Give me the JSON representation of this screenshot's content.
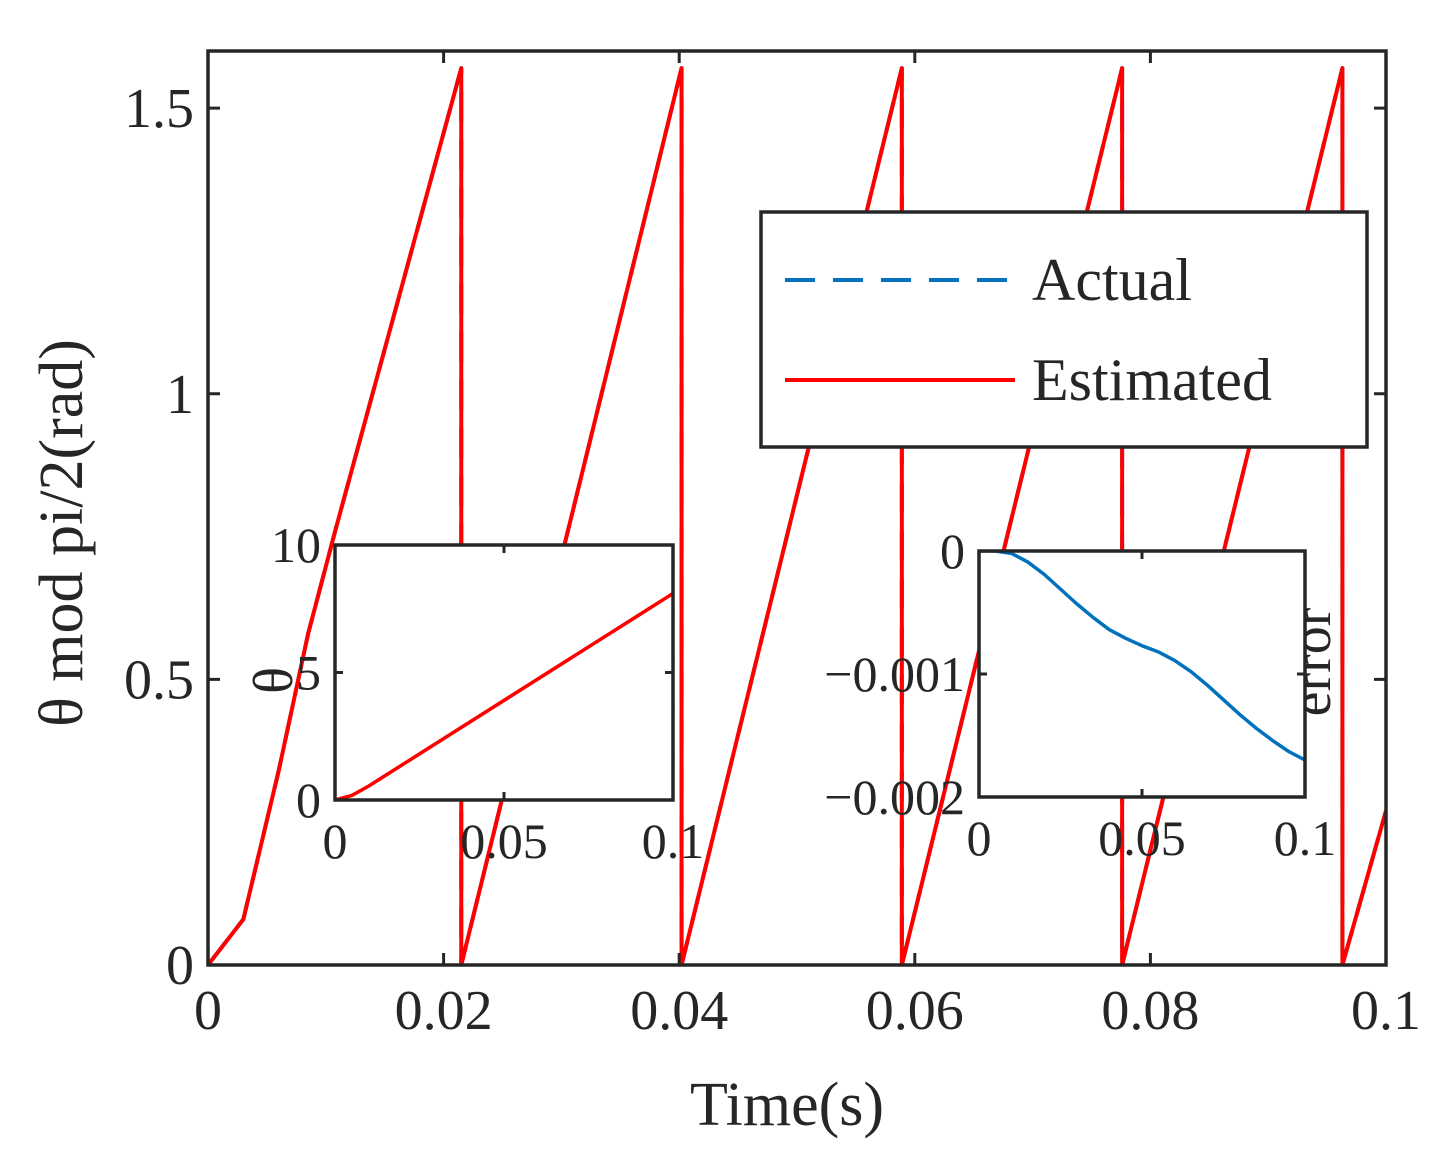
{
  "chart_data": [
    {
      "id": "main",
      "type": "line",
      "title": "",
      "xlabel": "Time(s)",
      "ylabel": "θ mod pi/2(rad)",
      "xlim": [
        0,
        0.1
      ],
      "ylim": [
        0,
        1.6
      ],
      "xticks": [
        0,
        0.02,
        0.04,
        0.06,
        0.08,
        0.1
      ],
      "xtick_labels": [
        "0",
        "0.02",
        "0.04",
        "0.06",
        "0.08",
        "0.1"
      ],
      "yticks": [
        0,
        0.5,
        1,
        1.5
      ],
      "ytick_labels": [
        "0",
        "0.5",
        "1",
        "1.5"
      ],
      "grid": false,
      "legend_position": "top-right",
      "series": [
        {
          "name": "Actual",
          "style": "dashed",
          "color": "#0072BD",
          "x": [
            0,
            0.003,
            0.006,
            0.0085,
            0.0108,
            0.0215,
            0.0215,
            0.0402,
            0.0402,
            0.0589,
            0.0589,
            0.0776,
            0.0776,
            0.0963,
            0.0963,
            0.1
          ],
          "y": [
            0,
            0.08,
            0.34,
            0.58,
            0.76,
            1.57,
            0,
            1.57,
            0,
            1.57,
            0,
            1.57,
            0,
            1.57,
            0,
            0.27
          ]
        },
        {
          "name": "Estimated",
          "style": "solid",
          "color": "#FF0000",
          "x": [
            0,
            0.003,
            0.006,
            0.0085,
            0.0108,
            0.0215,
            0.0215,
            0.0402,
            0.0402,
            0.0589,
            0.0589,
            0.0776,
            0.0776,
            0.0963,
            0.0963,
            0.1
          ],
          "y": [
            0,
            0.08,
            0.34,
            0.58,
            0.76,
            1.57,
            0,
            1.57,
            0,
            1.57,
            0,
            1.57,
            0,
            1.57,
            0,
            0.27
          ]
        }
      ]
    },
    {
      "id": "inset-theta",
      "type": "line",
      "xlabel": "",
      "ylabel": "θ",
      "xlim": [
        0,
        0.1
      ],
      "ylim": [
        0,
        10
      ],
      "xticks": [
        0,
        0.05,
        0.1
      ],
      "xtick_labels": [
        "0",
        "0.05",
        "0.1"
      ],
      "yticks": [
        0,
        5,
        10
      ],
      "ytick_labels": [
        "0",
        "5",
        "10"
      ],
      "series": [
        {
          "name": "θ",
          "color": "#FF0000",
          "x": [
            0,
            0.005,
            0.01,
            0.1
          ],
          "y": [
            0,
            0.18,
            0.55,
            8.1
          ]
        }
      ]
    },
    {
      "id": "inset-error",
      "type": "line",
      "xlabel": "",
      "ylabel": "error",
      "xlim": [
        0,
        0.1
      ],
      "ylim": [
        -0.002,
        0
      ],
      "xticks": [
        0,
        0.05,
        0.1
      ],
      "xtick_labels": [
        "0",
        "0.05",
        "0.1"
      ],
      "yticks": [
        -0.002,
        -0.001,
        0
      ],
      "ytick_labels": [
        "−0.002",
        "−0.001",
        "0"
      ],
      "series": [
        {
          "name": "error",
          "color": "#0072BD",
          "x": [
            0,
            0.005,
            0.01,
            0.015,
            0.02,
            0.025,
            0.03,
            0.035,
            0.04,
            0.045,
            0.05,
            0.055,
            0.06,
            0.065,
            0.07,
            0.075,
            0.08,
            0.085,
            0.09,
            0.095,
            0.1
          ],
          "y": [
            0,
            0,
            -2e-05,
            -9e-05,
            -0.00019,
            -0.00031,
            -0.00043,
            -0.00054,
            -0.00064,
            -0.00071,
            -0.00077,
            -0.00082,
            -0.00089,
            -0.00098,
            -0.00109,
            -0.00121,
            -0.00133,
            -0.00144,
            -0.00154,
            -0.00163,
            -0.0017
          ]
        }
      ]
    }
  ]
}
